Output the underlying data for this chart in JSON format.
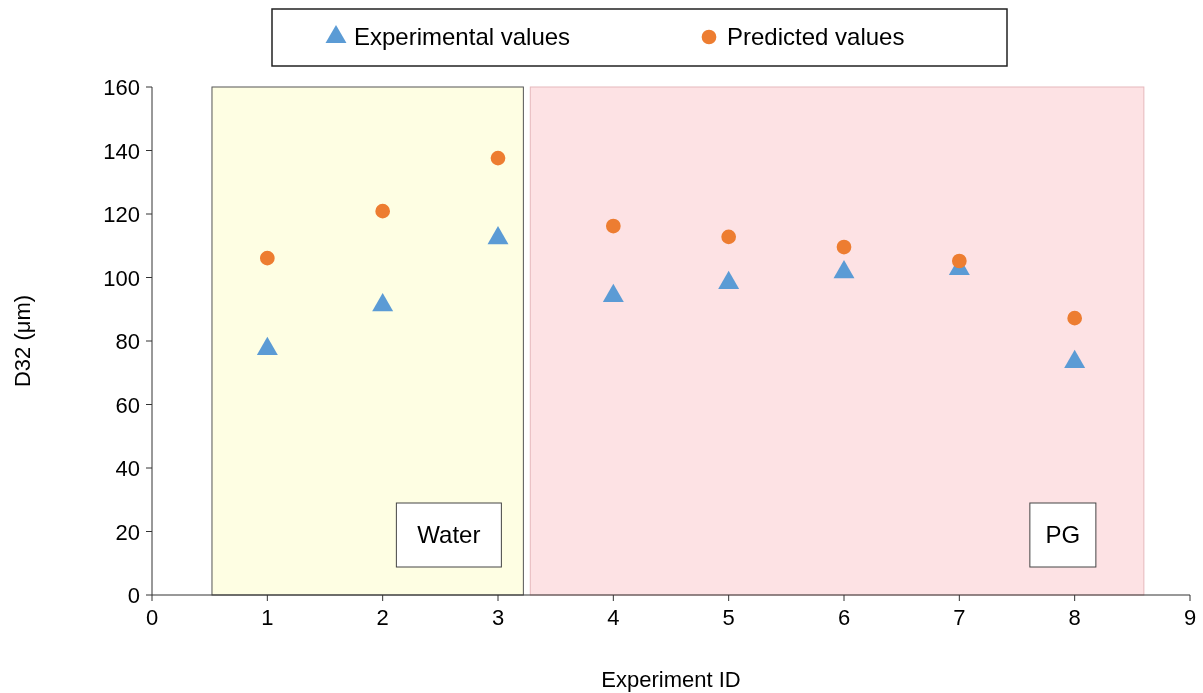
{
  "chart_data": {
    "type": "scatter",
    "xlabel": "Experiment ID",
    "ylabel": "D32 (μm)",
    "xlim": [
      0,
      9
    ],
    "xticks": [
      0,
      1,
      2,
      3,
      4,
      5,
      6,
      7,
      8,
      9
    ],
    "ylim": [
      0,
      160
    ],
    "yticks": [
      0,
      20,
      40,
      60,
      80,
      100,
      120,
      140,
      160
    ],
    "x": [
      1,
      2,
      3,
      4,
      5,
      6,
      7,
      8
    ],
    "series": [
      {
        "name": "Experimental values",
        "color": "#5b9bd5",
        "marker": "triangle",
        "values": [
          77.5,
          91.3,
          112.4,
          94.2,
          98.3,
          101.7,
          102.7,
          73.4
        ]
      },
      {
        "name": "Predicted values",
        "color": "#ed7d31",
        "marker": "circle",
        "values": [
          106.1,
          120.9,
          137.6,
          116.2,
          112.8,
          109.6,
          105.2,
          87.2
        ]
      }
    ],
    "bands": [
      {
        "axis": "x",
        "from": 0.52,
        "to": 3.22,
        "label": "Water",
        "color": "#fefee3"
      },
      {
        "axis": "x",
        "from": 3.28,
        "to": 8.6,
        "label": "PG",
        "color": "#fde2e4"
      }
    ],
    "legend": "top",
    "grid": false
  }
}
